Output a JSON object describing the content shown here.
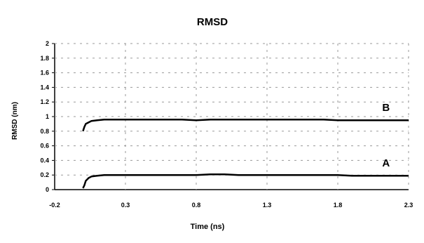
{
  "chart_data": {
    "type": "line",
    "title": "RMSD",
    "xlabel": "Time (ns)",
    "ylabel": "RMSD (nm)",
    "xlim": [
      -0.2,
      2.3
    ],
    "ylim": [
      0,
      2
    ],
    "xticks": [
      -0.2,
      0.3,
      0.8,
      1.3,
      1.8,
      2.3
    ],
    "xtick_labels": [
      "-0.2",
      "0.3",
      "0.8",
      "1.3",
      "1.8",
      "2.3"
    ],
    "yticks": [
      0,
      0.2,
      0.4,
      0.6,
      0.8,
      1,
      1.2,
      1.4,
      1.6,
      1.8,
      2
    ],
    "ytick_labels": [
      "0",
      "0.2",
      "0.4",
      "0.6",
      "0.8",
      "1",
      "1.2",
      "1.4",
      "1.6",
      "1.8",
      "2"
    ],
    "grid": true,
    "legend": "none",
    "line_color": "#000000",
    "series": [
      {
        "label": "B",
        "x": [
          0,
          0.01,
          0.02,
          0.04,
          0.06,
          0.1,
          0.15,
          0.2,
          0.3,
          0.4,
          0.5,
          0.6,
          0.7,
          0.8,
          0.9,
          1.0,
          1.1,
          1.2,
          1.3,
          1.4,
          1.5,
          1.6,
          1.7,
          1.8,
          1.9,
          2.0,
          2.1,
          2.2,
          2.3
        ],
        "y": [
          0.8,
          0.86,
          0.9,
          0.92,
          0.94,
          0.95,
          0.96,
          0.96,
          0.96,
          0.96,
          0.96,
          0.96,
          0.96,
          0.95,
          0.96,
          0.96,
          0.96,
          0.96,
          0.96,
          0.96,
          0.96,
          0.96,
          0.96,
          0.95,
          0.95,
          0.95,
          0.95,
          0.95,
          0.95
        ]
      },
      {
        "label": "A",
        "x": [
          0,
          0.01,
          0.02,
          0.04,
          0.06,
          0.1,
          0.15,
          0.2,
          0.3,
          0.4,
          0.5,
          0.6,
          0.7,
          0.8,
          0.9,
          1.0,
          1.1,
          1.2,
          1.3,
          1.4,
          1.5,
          1.6,
          1.7,
          1.8,
          1.9,
          2.0,
          2.1,
          2.2,
          2.3
        ],
        "y": [
          0.02,
          0.06,
          0.12,
          0.16,
          0.18,
          0.19,
          0.2,
          0.2,
          0.2,
          0.2,
          0.2,
          0.2,
          0.2,
          0.2,
          0.21,
          0.21,
          0.2,
          0.2,
          0.2,
          0.2,
          0.2,
          0.2,
          0.2,
          0.2,
          0.19,
          0.19,
          0.19,
          0.19,
          0.19
        ]
      }
    ]
  }
}
